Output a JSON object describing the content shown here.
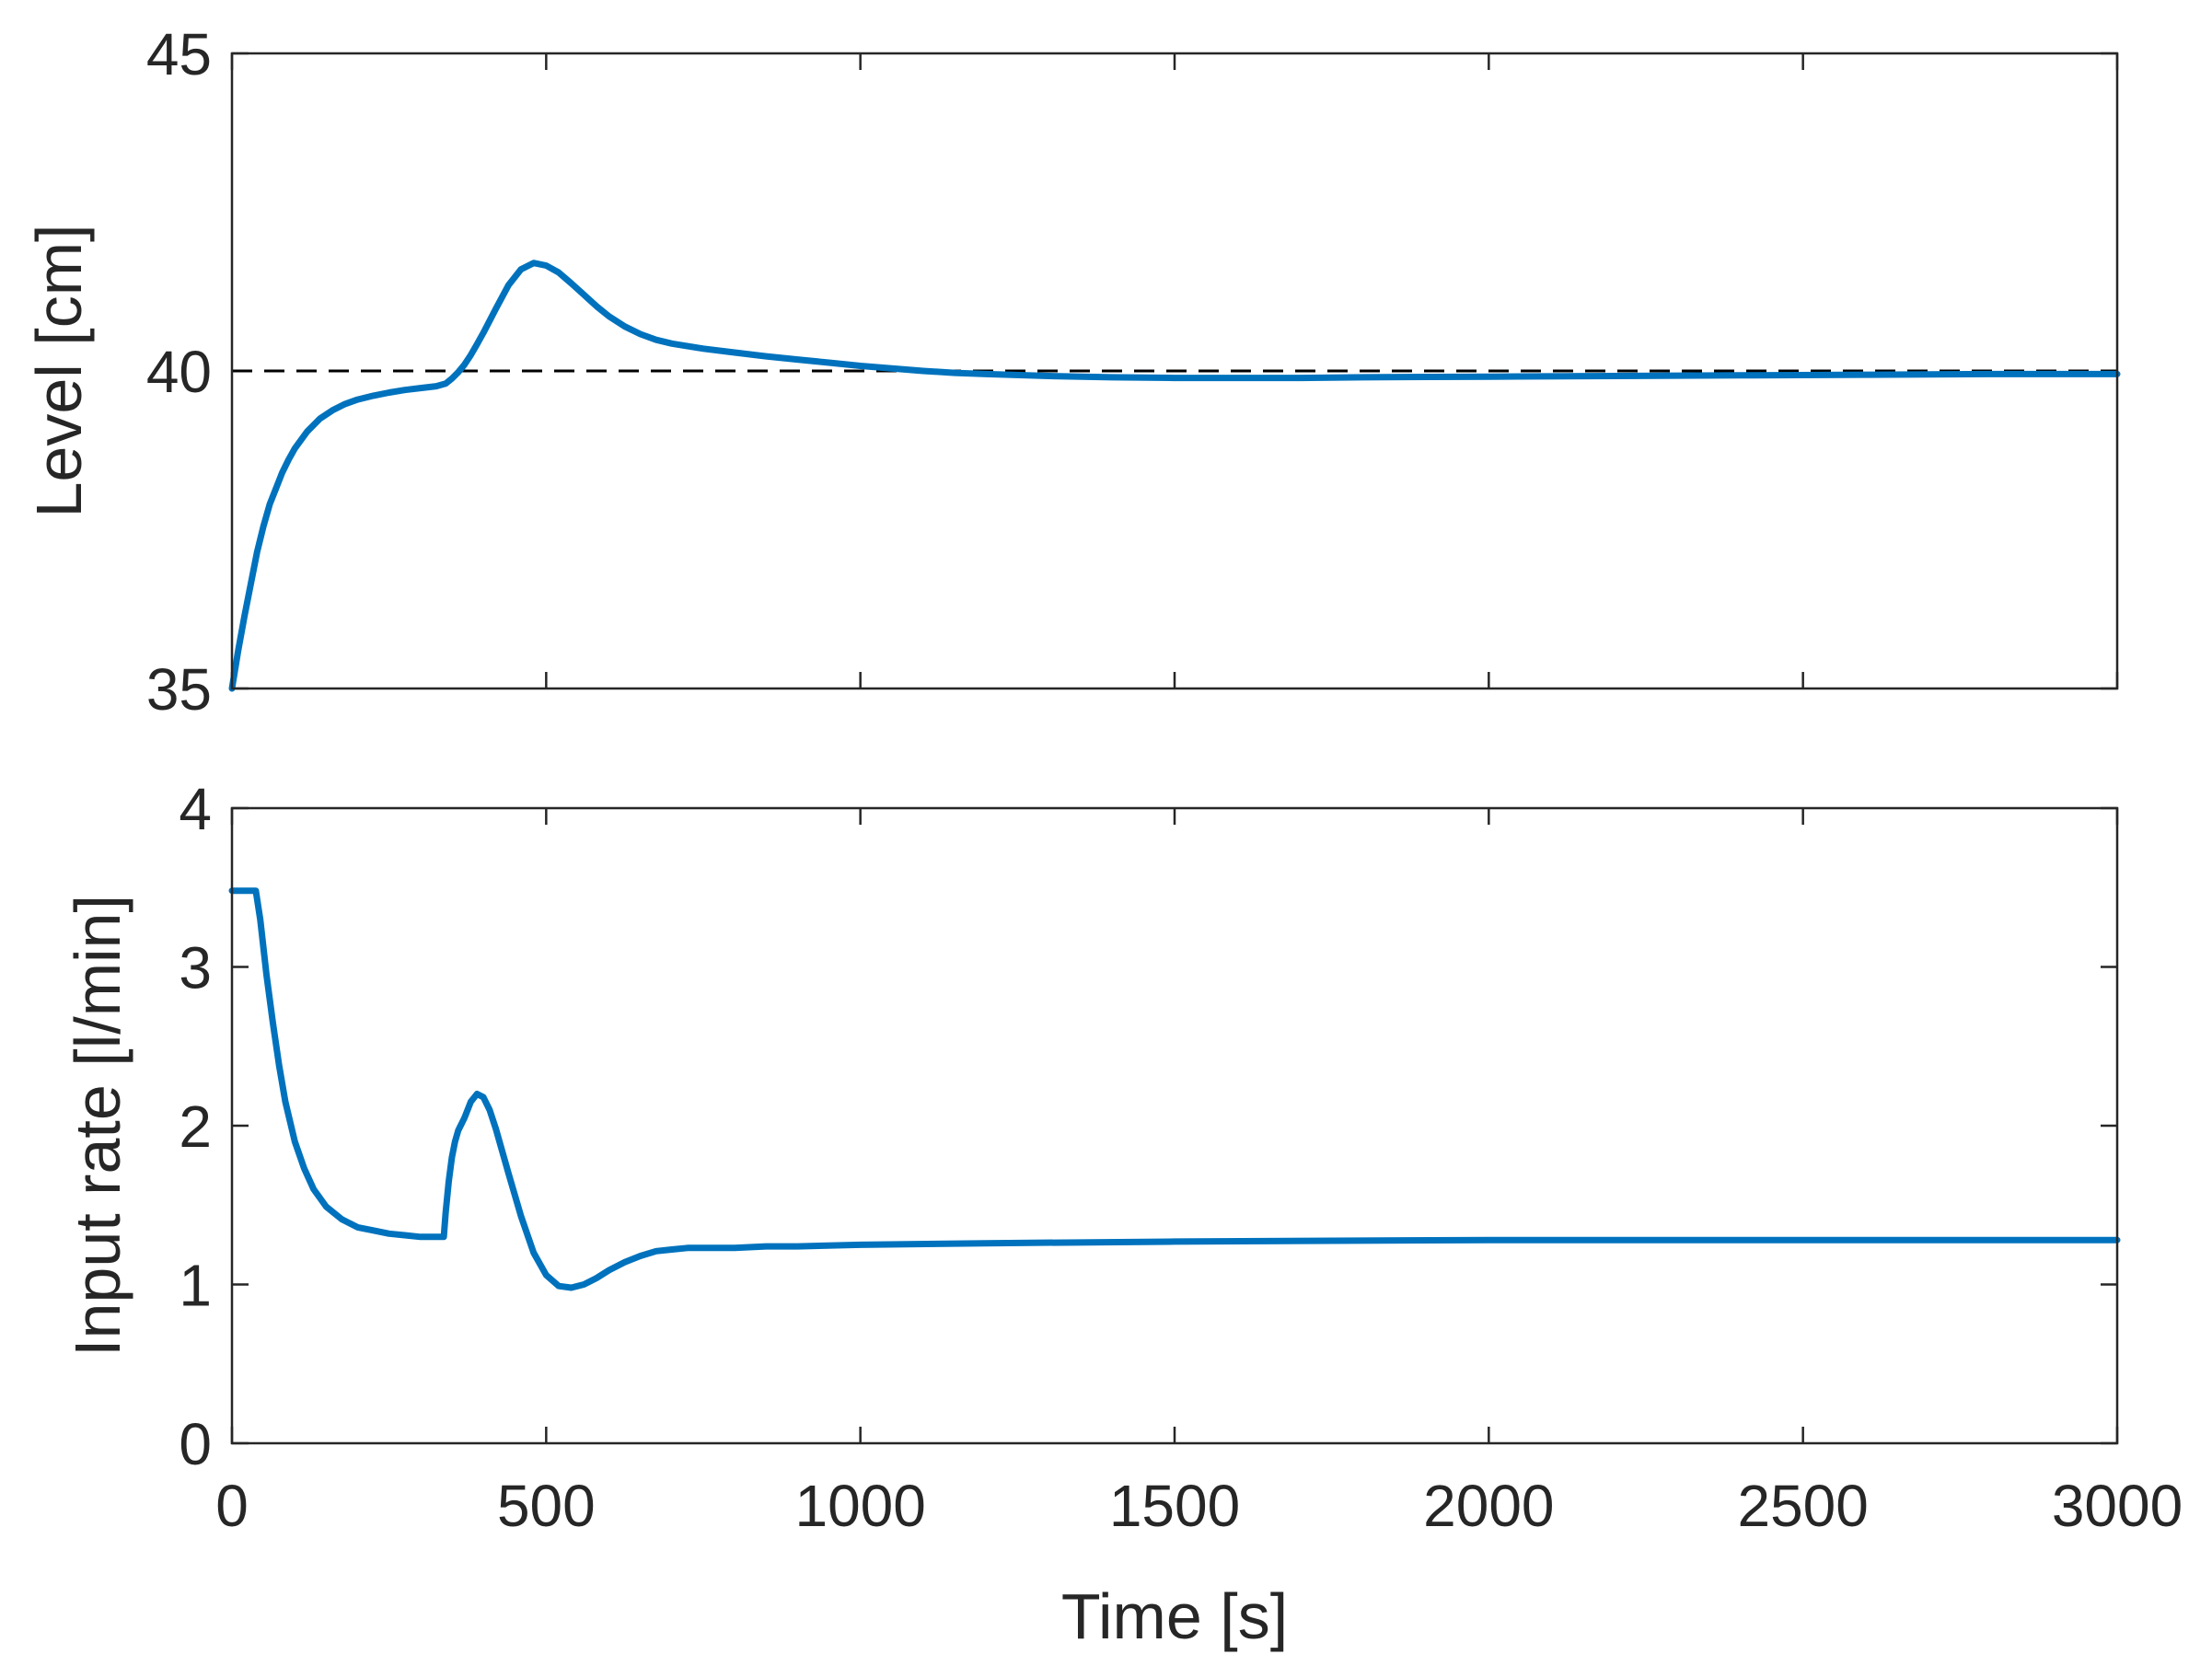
{
  "colors": {
    "series": "#0072BD",
    "reference": "#000000",
    "axes": "#262626"
  },
  "chart_data": [
    {
      "type": "line",
      "title": "",
      "xlabel": "",
      "ylabel": "Level [cm]",
      "xlim": [
        0,
        3000
      ],
      "ylim": [
        35,
        45
      ],
      "xticks": [
        0,
        500,
        1000,
        1500,
        2000,
        2500,
        3000
      ],
      "yticks": [
        35,
        40,
        45
      ],
      "show_xtick_labels": false,
      "grid": false,
      "reference_line": {
        "y": 40,
        "style": "dashed"
      },
      "series": [
        {
          "x": [
            0,
            10,
            20,
            30,
            40,
            50,
            60,
            70,
            80,
            90,
            100,
            120,
            140,
            160,
            180,
            200,
            225,
            250,
            275,
            300,
            325,
            340,
            350,
            360,
            370,
            380,
            390,
            400,
            420,
            440,
            460,
            480,
            500,
            520,
            540,
            560,
            580,
            600,
            625,
            650,
            675,
            700,
            750,
            800,
            850,
            900,
            950,
            1000,
            1050,
            1100,
            1150,
            1200,
            1300,
            1400,
            1500,
            1600,
            1700,
            1800,
            2000,
            2200,
            2400,
            2600,
            2800,
            3000
          ],
          "y": [
            35.0,
            35.6,
            36.15,
            36.65,
            37.15,
            37.55,
            37.9,
            38.15,
            38.4,
            38.6,
            38.78,
            39.05,
            39.25,
            39.38,
            39.48,
            39.55,
            39.61,
            39.66,
            39.7,
            39.73,
            39.76,
            39.8,
            39.88,
            39.98,
            40.1,
            40.25,
            40.42,
            40.6,
            40.98,
            41.35,
            41.6,
            41.7,
            41.66,
            41.55,
            41.38,
            41.2,
            41.02,
            40.86,
            40.7,
            40.58,
            40.49,
            40.43,
            40.35,
            40.29,
            40.23,
            40.18,
            40.13,
            40.08,
            40.04,
            40.0,
            39.97,
            39.95,
            39.92,
            39.9,
            39.89,
            39.89,
            39.89,
            39.9,
            39.91,
            39.92,
            39.93,
            39.94,
            39.95,
            39.95
          ]
        }
      ]
    },
    {
      "type": "line",
      "title": "",
      "xlabel": "Time [s]",
      "ylabel": "Input rate [l/min]",
      "xlim": [
        0,
        3000
      ],
      "ylim": [
        0,
        4
      ],
      "xticks": [
        0,
        500,
        1000,
        1500,
        2000,
        2500,
        3000
      ],
      "yticks": [
        0,
        1,
        2,
        3,
        4
      ],
      "show_xtick_labels": true,
      "grid": false,
      "series": [
        {
          "x": [
            0,
            10,
            20,
            30,
            38,
            45,
            55,
            65,
            75,
            85,
            100,
            115,
            130,
            150,
            175,
            200,
            225,
            250,
            275,
            300,
            320,
            337,
            340,
            345,
            350,
            355,
            360,
            370,
            380,
            390,
            400,
            410,
            420,
            440,
            460,
            480,
            500,
            520,
            540,
            560,
            580,
            600,
            625,
            650,
            675,
            700,
            725,
            750,
            800,
            850,
            900,
            1000,
            1200,
            1500,
            2000,
            2500,
            3000
          ],
          "y": [
            3.48,
            3.48,
            3.48,
            3.48,
            3.48,
            3.3,
            2.95,
            2.65,
            2.38,
            2.15,
            1.9,
            1.73,
            1.6,
            1.49,
            1.41,
            1.36,
            1.34,
            1.32,
            1.31,
            1.3,
            1.3,
            1.3,
            1.45,
            1.65,
            1.8,
            1.9,
            1.97,
            2.05,
            2.15,
            2.2,
            2.18,
            2.1,
            1.98,
            1.7,
            1.43,
            1.2,
            1.06,
            0.99,
            0.98,
            1.0,
            1.04,
            1.09,
            1.14,
            1.18,
            1.21,
            1.22,
            1.23,
            1.23,
            1.23,
            1.24,
            1.24,
            1.25,
            1.26,
            1.27,
            1.28,
            1.28,
            1.28
          ]
        }
      ]
    }
  ]
}
